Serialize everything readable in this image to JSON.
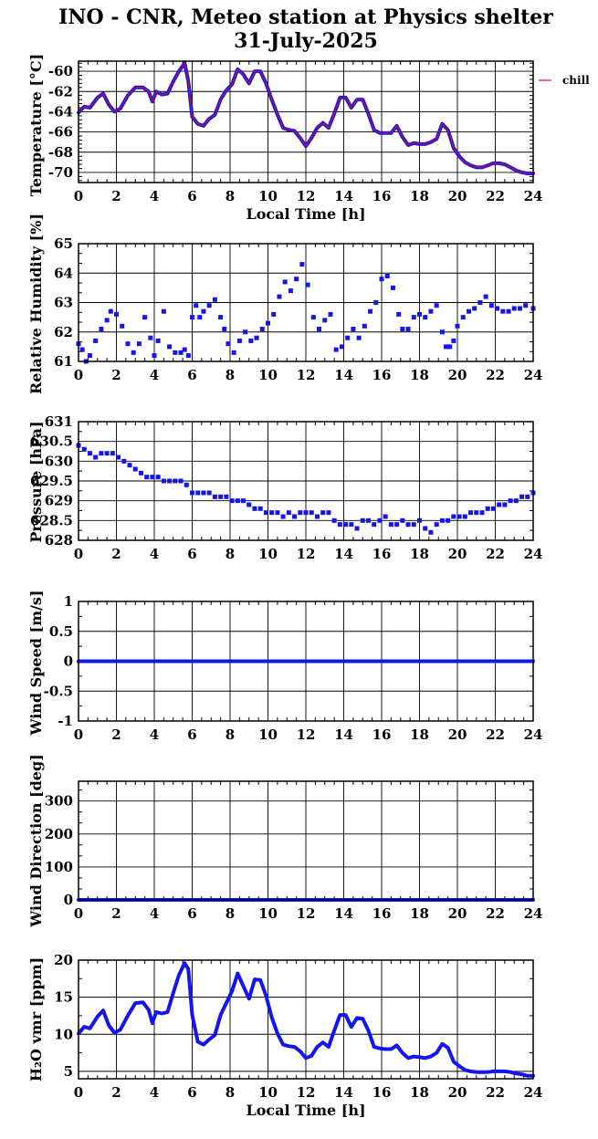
{
  "title": [
    "INO - CNR, Meteo station at Physics shelter",
    "31-July-2025"
  ],
  "colors": {
    "series": "#1414f0",
    "overlay": "#e01010",
    "axis": "#000000",
    "grid": "#000000"
  },
  "chart_data": [
    {
      "type": "line",
      "ylabel": "Temperature [°C]",
      "xlabel": "Local Time [h]",
      "xlim": [
        0,
        24
      ],
      "ylim": [
        -71,
        -59
      ],
      "xticks": [
        "0",
        "2",
        "4",
        "6",
        "8",
        "10",
        "12",
        "14",
        "16",
        "18",
        "20",
        "22",
        "24"
      ],
      "yticks": [
        -70,
        -68,
        -66,
        -64,
        -62,
        -60
      ],
      "ytick_labels": [
        "-70",
        "-68",
        "-66",
        "-64",
        "-62",
        "-60"
      ],
      "grid": true,
      "legend": {
        "position": "top-right",
        "entries": [
          "chill"
        ]
      },
      "series": [
        {
          "name": "",
          "x": [
            0,
            0.3,
            0.6,
            1.0,
            1.3,
            1.6,
            1.9,
            2.2,
            2.6,
            3.0,
            3.4,
            3.7,
            3.9,
            4.1,
            4.4,
            4.7,
            5.0,
            5.3,
            5.6,
            5.8,
            6.0,
            6.3,
            6.6,
            6.9,
            7.2,
            7.5,
            7.8,
            8.1,
            8.4,
            8.7,
            9.0,
            9.3,
            9.6,
            9.9,
            10.2,
            10.5,
            10.8,
            11.1,
            11.4,
            11.7,
            12.0,
            12.3,
            12.6,
            12.9,
            13.2,
            13.5,
            13.8,
            14.1,
            14.4,
            14.7,
            15.0,
            15.3,
            15.6,
            15.9,
            16.2,
            16.5,
            16.8,
            17.1,
            17.4,
            17.7,
            18.0,
            18.3,
            18.6,
            18.9,
            19.2,
            19.5,
            19.8,
            20.1,
            20.4,
            20.7,
            21.0,
            21.3,
            21.6,
            21.9,
            22.2,
            22.5,
            22.8,
            23.1,
            23.4,
            23.7,
            24.0
          ],
          "y": [
            -64.1,
            -63.5,
            -63.6,
            -62.6,
            -62.2,
            -63.3,
            -64.0,
            -63.7,
            -62.4,
            -61.6,
            -61.6,
            -62.0,
            -63.0,
            -62.0,
            -62.3,
            -62.2,
            -61.0,
            -60.0,
            -59.2,
            -61.0,
            -64.5,
            -65.2,
            -65.4,
            -64.7,
            -64.3,
            -62.8,
            -61.9,
            -61.3,
            -59.8,
            -60.3,
            -61.2,
            -60.0,
            -60.0,
            -61.2,
            -62.8,
            -64.3,
            -65.6,
            -65.8,
            -65.9,
            -66.6,
            -67.4,
            -66.6,
            -65.6,
            -65.1,
            -65.6,
            -64.2,
            -62.6,
            -62.6,
            -63.6,
            -62.8,
            -62.8,
            -64.2,
            -65.8,
            -66.1,
            -66.1,
            -66.1,
            -65.4,
            -66.5,
            -67.3,
            -67.1,
            -67.2,
            -67.2,
            -67.0,
            -66.7,
            -65.2,
            -65.8,
            -67.6,
            -68.4,
            -69.0,
            -69.3,
            -69.5,
            -69.5,
            -69.3,
            -69.1,
            -69.1,
            -69.2,
            -69.5,
            -69.8,
            -70.0,
            -70.1,
            -70.1
          ]
        }
      ]
    },
    {
      "type": "scatter",
      "ylabel": "Relative Humidity [%]",
      "xlim": [
        0,
        24
      ],
      "ylim": [
        61,
        65
      ],
      "xticks": [
        "0",
        "2",
        "4",
        "6",
        "8",
        "10",
        "12",
        "14",
        "16",
        "18",
        "20",
        "22",
        "24"
      ],
      "yticks": [
        61,
        62,
        63,
        64,
        65
      ],
      "ytick_labels": [
        "61",
        "62",
        "63",
        "64",
        "65"
      ],
      "grid": true,
      "series": [
        {
          "name": "",
          "x": [
            0,
            0.2,
            0.4,
            0.6,
            0.9,
            1.2,
            1.5,
            1.7,
            2.0,
            2.3,
            2.6,
            2.9,
            3.2,
            3.5,
            3.8,
            4.0,
            4.2,
            4.5,
            4.8,
            5.1,
            5.4,
            5.6,
            5.8,
            6.0,
            6.2,
            6.4,
            6.6,
            6.9,
            7.2,
            7.5,
            7.7,
            7.9,
            8.2,
            8.5,
            8.8,
            9.1,
            9.4,
            9.7,
            10.0,
            10.3,
            10.6,
            10.9,
            11.2,
            11.5,
            11.8,
            12.1,
            12.4,
            12.7,
            13.0,
            13.3,
            13.6,
            13.9,
            14.2,
            14.5,
            14.8,
            15.1,
            15.4,
            15.7,
            16.0,
            16.3,
            16.6,
            16.9,
            17.1,
            17.4,
            17.7,
            18.0,
            18.3,
            18.6,
            18.9,
            19.2,
            19.4,
            19.6,
            19.8,
            20.0,
            20.3,
            20.6,
            20.9,
            21.2,
            21.5,
            21.8,
            22.1,
            22.4,
            22.7,
            23.0,
            23.3,
            23.6,
            24.0
          ],
          "y": [
            61.6,
            61.4,
            61.0,
            61.2,
            61.7,
            62.1,
            62.4,
            62.7,
            62.6,
            62.2,
            61.6,
            61.3,
            61.6,
            62.5,
            61.8,
            61.2,
            61.7,
            62.7,
            61.5,
            61.3,
            61.3,
            61.4,
            61.2,
            62.5,
            62.9,
            62.5,
            62.7,
            62.9,
            63.1,
            62.5,
            62.1,
            61.6,
            61.3,
            61.7,
            62.0,
            61.7,
            61.8,
            62.1,
            62.3,
            62.6,
            63.2,
            63.7,
            63.4,
            63.8,
            64.3,
            63.6,
            62.5,
            62.1,
            62.4,
            62.6,
            61.4,
            61.5,
            61.8,
            62.1,
            61.8,
            62.2,
            62.7,
            63.0,
            63.8,
            63.9,
            63.5,
            62.6,
            62.1,
            62.1,
            62.5,
            62.6,
            62.5,
            62.7,
            62.9,
            62.0,
            61.5,
            61.5,
            61.7,
            62.2,
            62.5,
            62.7,
            62.8,
            63.0,
            63.2,
            62.9,
            62.8,
            62.7,
            62.7,
            62.8,
            62.8,
            62.9,
            62.8
          ]
        }
      ]
    },
    {
      "type": "scatter",
      "ylabel": "Pressure [hPa]",
      "xlim": [
        0,
        24
      ],
      "ylim": [
        628,
        631
      ],
      "xticks": [
        "0",
        "2",
        "4",
        "6",
        "8",
        "10",
        "12",
        "14",
        "16",
        "18",
        "20",
        "22",
        "24"
      ],
      "yticks": [
        628,
        628.5,
        629,
        629.5,
        630,
        630.5,
        631
      ],
      "ytick_labels": [
        "628",
        "628.5",
        "629",
        "629.5",
        "630",
        "630.5",
        "631"
      ],
      "grid": true,
      "series": [
        {
          "name": "",
          "x": [
            0,
            0.3,
            0.6,
            0.9,
            1.2,
            1.5,
            1.8,
            2.1,
            2.4,
            2.7,
            3.0,
            3.3,
            3.6,
            3.9,
            4.2,
            4.5,
            4.8,
            5.1,
            5.4,
            5.7,
            6.0,
            6.3,
            6.6,
            6.9,
            7.2,
            7.5,
            7.8,
            8.1,
            8.4,
            8.7,
            9.0,
            9.3,
            9.6,
            9.9,
            10.2,
            10.5,
            10.8,
            11.1,
            11.4,
            11.7,
            12.0,
            12.3,
            12.6,
            12.9,
            13.2,
            13.5,
            13.8,
            14.1,
            14.4,
            14.7,
            15.0,
            15.3,
            15.6,
            15.9,
            16.2,
            16.5,
            16.8,
            17.1,
            17.4,
            17.7,
            18.0,
            18.3,
            18.6,
            18.9,
            19.2,
            19.5,
            19.8,
            20.1,
            20.4,
            20.7,
            21.0,
            21.3,
            21.6,
            21.9,
            22.2,
            22.5,
            22.8,
            23.1,
            23.4,
            23.7,
            24.0
          ],
          "y": [
            630.4,
            630.3,
            630.2,
            630.1,
            630.2,
            630.2,
            630.2,
            630.1,
            630.0,
            629.9,
            629.8,
            629.7,
            629.6,
            629.6,
            629.6,
            629.5,
            629.5,
            629.5,
            629.5,
            629.4,
            629.2,
            629.2,
            629.2,
            629.2,
            629.1,
            629.1,
            629.1,
            629.0,
            629.0,
            629.0,
            628.9,
            628.8,
            628.8,
            628.7,
            628.7,
            628.7,
            628.6,
            628.7,
            628.6,
            628.7,
            628.7,
            628.7,
            628.6,
            628.7,
            628.7,
            628.5,
            628.4,
            628.4,
            628.4,
            628.3,
            628.5,
            628.5,
            628.4,
            628.5,
            628.6,
            628.4,
            628.4,
            628.5,
            628.4,
            628.4,
            628.5,
            628.3,
            628.2,
            628.4,
            628.5,
            628.5,
            628.6,
            628.6,
            628.6,
            628.7,
            628.7,
            628.7,
            628.8,
            628.8,
            628.9,
            628.9,
            629.0,
            629.0,
            629.1,
            629.1,
            629.2
          ]
        }
      ]
    },
    {
      "type": "line",
      "ylabel": "Wind Speed [m/s]",
      "xlim": [
        0,
        24
      ],
      "ylim": [
        -1,
        1
      ],
      "xticks": [
        "0",
        "2",
        "4",
        "6",
        "8",
        "10",
        "12",
        "14",
        "16",
        "18",
        "20",
        "22",
        "24"
      ],
      "yticks": [
        -1,
        -0.5,
        0,
        0.5,
        1
      ],
      "ytick_labels": [
        "-1",
        "-0.5",
        "0",
        "0.5",
        "1"
      ],
      "grid": true,
      "series": [
        {
          "name": "",
          "x": [
            0,
            24
          ],
          "y": [
            0,
            0
          ]
        }
      ]
    },
    {
      "type": "line",
      "ylabel": "Wind Direction [deg]",
      "xlim": [
        0,
        24
      ],
      "ylim": [
        0,
        360
      ],
      "xticks": [
        "0",
        "2",
        "4",
        "6",
        "8",
        "10",
        "12",
        "14",
        "16",
        "18",
        "20",
        "22",
        "24"
      ],
      "yticks": [
        0,
        100,
        200,
        300
      ],
      "ytick_labels": [
        "0",
        "100",
        "200",
        "300"
      ],
      "grid": true,
      "series": [
        {
          "name": "",
          "x": [
            0,
            24
          ],
          "y": [
            0,
            0
          ]
        }
      ]
    },
    {
      "type": "line",
      "ylabel": "H₂O vmr [ppm]",
      "xlabel": "Local Time [h]",
      "xlim": [
        0,
        24
      ],
      "ylim": [
        4,
        20
      ],
      "xticks": [
        "0",
        "2",
        "4",
        "6",
        "8",
        "10",
        "12",
        "14",
        "16",
        "18",
        "20",
        "22",
        "24"
      ],
      "yticks": [
        5,
        10,
        15,
        20
      ],
      "ytick_labels": [
        "5",
        "10",
        "15",
        "20"
      ],
      "grid": true,
      "series": [
        {
          "name": "",
          "x": [
            0,
            0.3,
            0.6,
            1.0,
            1.3,
            1.6,
            1.9,
            2.2,
            2.6,
            3.0,
            3.4,
            3.7,
            3.9,
            4.1,
            4.4,
            4.7,
            5.0,
            5.3,
            5.6,
            5.8,
            6.0,
            6.3,
            6.6,
            6.9,
            7.2,
            7.5,
            7.8,
            8.1,
            8.4,
            8.7,
            9.0,
            9.3,
            9.6,
            9.9,
            10.2,
            10.5,
            10.8,
            11.1,
            11.4,
            11.7,
            12.0,
            12.3,
            12.6,
            12.9,
            13.2,
            13.5,
            13.8,
            14.1,
            14.4,
            14.7,
            15.0,
            15.3,
            15.6,
            15.9,
            16.2,
            16.5,
            16.8,
            17.1,
            17.4,
            17.7,
            18.0,
            18.3,
            18.6,
            18.9,
            19.2,
            19.5,
            19.8,
            20.1,
            20.4,
            20.7,
            21.0,
            21.3,
            21.6,
            21.9,
            22.2,
            22.5,
            22.8,
            23.1,
            23.4,
            23.7,
            24.0
          ],
          "y": [
            10.1,
            11.0,
            10.8,
            12.4,
            13.2,
            11.2,
            10.2,
            10.6,
            12.5,
            14.2,
            14.3,
            13.3,
            11.5,
            13.0,
            12.8,
            13.0,
            15.6,
            18.0,
            19.6,
            18.8,
            12.6,
            9.0,
            8.6,
            9.3,
            9.9,
            12.6,
            14.2,
            15.8,
            18.2,
            16.5,
            14.8,
            17.4,
            17.3,
            15.2,
            12.3,
            10.1,
            8.6,
            8.4,
            8.3,
            7.7,
            6.8,
            7.1,
            8.3,
            8.9,
            8.3,
            10.5,
            12.6,
            12.6,
            11.0,
            12.2,
            12.1,
            10.5,
            8.3,
            8.1,
            8.0,
            8.0,
            8.5,
            7.5,
            6.8,
            7.0,
            6.9,
            6.8,
            7.0,
            7.5,
            8.7,
            8.2,
            6.3,
            5.7,
            5.2,
            5.0,
            4.9,
            4.9,
            4.9,
            5.0,
            5.0,
            5.0,
            4.9,
            4.7,
            4.6,
            4.4,
            4.4
          ]
        }
      ]
    }
  ]
}
